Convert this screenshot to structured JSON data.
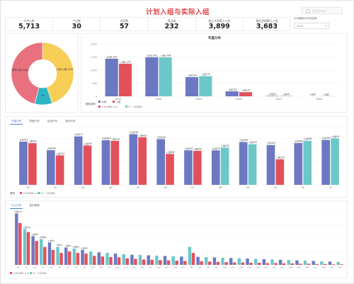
{
  "title": "计划入组与实际入组",
  "top_button": {
    "label": "导出 Excel"
  },
  "kpis": [
    {
      "label": "分中心数",
      "value": "5,713"
    },
    {
      "label": "产品数",
      "value": "30"
    },
    {
      "label": "试验数",
      "value": "57"
    },
    {
      "label": "受试者",
      "value": "232"
    },
    {
      "label": "截止今年累计入组",
      "value": "3,899"
    },
    {
      "label": "截至目前累计入组",
      "value": "3,683"
    }
  ],
  "selector": {
    "label": "分月图统计年份选择",
    "value": "2020",
    "chevron": "▾"
  },
  "month_tabs": [
    "月度分布",
    "季度分布",
    "区域分布",
    "省份分布"
  ],
  "center_tabs": [
    "中心分布",
    "省份数据"
  ],
  "colors": {
    "plan": "#6c78c2",
    "actual_red": "#e2515b",
    "actual_teal": "#6cc7c9",
    "donut_red": "#e9717f",
    "donut_yellow": "#f7cf56",
    "donut_teal": "#2fb6c4"
  },
  "chart_data": [
    {
      "type": "pie",
      "slices": [
        {
          "name": "实际入组",
          "label": "实际入组 46%",
          "value": 46
        },
        {
          "name": "计划入组",
          "label": "计划入组 45%",
          "value": 45
        },
        {
          "name": "其他",
          "label": "9%",
          "value": 9
        }
      ]
    },
    {
      "type": "bar",
      "title": "年度分布",
      "categories": [
        "2021",
        "2020",
        "2019",
        "2018",
        "2017",
        "2016"
      ],
      "ylim": [
        0,
        2000
      ],
      "yticks": [
        "2,000",
        "1,500",
        "1,000",
        "500",
        "0"
      ],
      "series": [
        {
          "name": "计划",
          "values": [
            1437,
            1491,
            734,
            193,
            16,
            0
          ],
          "labels": [
            "计划1,437",
            "计划1,491",
            "计划734",
            "计划193",
            "计划16",
            "计划0"
          ]
        },
        {
          "name": "实际",
          "values": [
            1247,
            1484,
            770,
            159,
            10,
            5
          ],
          "labels": [
            "入组1,247",
            "入组1,484",
            "入组770",
            "入组159",
            "入组10",
            "入组5"
          ]
        }
      ],
      "legend_title": "图例说明",
      "legend": [
        {
          "label": "计划"
        },
        {
          "label": "入组"
        },
        {
          "label": ">10,000 < 0"
        },
        {
          "label": "0 ~ 10,000"
        }
      ]
    },
    {
      "type": "bar",
      "categories": [
        "01",
        "02",
        "03",
        "04",
        "05",
        "06",
        "07",
        "08",
        "09",
        "10",
        "11",
        "12"
      ],
      "ylim": [
        0,
        500
      ],
      "series": [
        {
          "name": "计划",
          "values": [
            372,
            298,
            417,
            384,
            436,
            394,
            297,
            297,
            369,
            343,
            360,
            387
          ],
          "labels": [
            "计划372",
            "计划298",
            "计划417",
            "计划384",
            "计划436",
            "计划394",
            "计划297",
            "计划297",
            "计划369",
            "计划343",
            "计划360",
            "计划387"
          ]
        },
        {
          "name": "实际",
          "values": [
            359,
            254,
            339,
            379,
            410,
            266,
            293,
            320,
            350,
            220,
            380,
            400
          ],
          "labels": [
            "入组359",
            "入组254",
            "入组339",
            "入组379",
            "入组410",
            "入组266",
            "入组293",
            "入组320",
            "入组350",
            "入组220",
            "入组380",
            "入组400"
          ]
        }
      ],
      "legend": [
        {
          "label": "图例"
        },
        {
          "label": ">10,000 < 0"
        },
        {
          "label": "0 ~ 10,000"
        }
      ]
    },
    {
      "type": "bar",
      "categories": [
        "C1",
        "C2",
        "C3",
        "C4",
        "C5",
        "C6",
        "C7",
        "C8",
        "C9",
        "C10",
        "C11",
        "C12",
        "C13",
        "C14",
        "C15",
        "C16",
        "C17",
        "C18",
        "C19",
        "C20",
        "C21",
        "C22",
        "C23",
        "C24",
        "C25",
        "C26",
        "C27",
        "C28",
        "C29",
        "C30",
        "C31",
        "C32",
        "C33",
        "C34",
        "C35",
        "C36",
        "C37",
        "C38",
        "C39",
        "C40"
      ],
      "ylim": [
        0,
        180
      ],
      "series": [
        {
          "name": "计划",
          "values": [
            172,
            120,
            96,
            86,
            75,
            60,
            58,
            55,
            50,
            45,
            42,
            40,
            38,
            36,
            34,
            33,
            32,
            31,
            30,
            29,
            28,
            60,
            27,
            26,
            25,
            24,
            23,
            22,
            21,
            20,
            19,
            18,
            17,
            16,
            15,
            14,
            13,
            12,
            11,
            10
          ]
        },
        {
          "name": "实际",
          "values": [
            140,
            110,
            80,
            60,
            50,
            40,
            45,
            40,
            38,
            30,
            28,
            26,
            25,
            22,
            20,
            18,
            17,
            16,
            15,
            14,
            13,
            40,
            12,
            11,
            10,
            9,
            8,
            8,
            7,
            7,
            6,
            6,
            5,
            5,
            4,
            4,
            3,
            3,
            2,
            2
          ]
        }
      ],
      "top_labels": [
        "计划172",
        "入组120",
        "入组96",
        "计划86",
        "入组75",
        "计划71",
        "入组60",
        "计划61",
        "入组45"
      ],
      "legend": [
        {
          "label": ">10,000 < 0"
        },
        {
          "label": "0 ~ 10,000"
        }
      ]
    }
  ]
}
